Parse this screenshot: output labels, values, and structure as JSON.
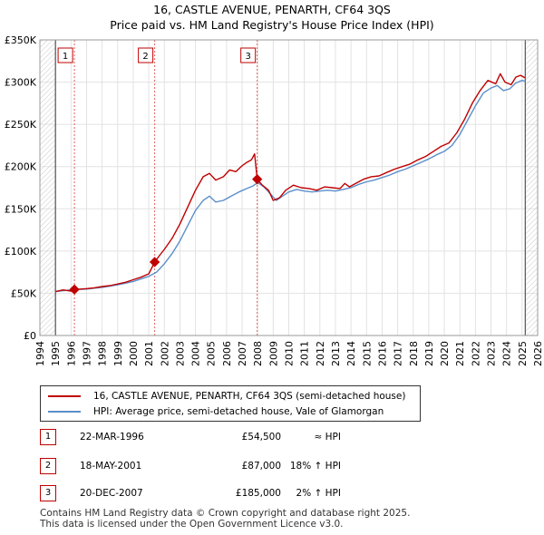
{
  "chart_data": {
    "type": "line",
    "title": "16, CASTLE AVENUE, PENARTH, CF64 3QS",
    "subtitle": "Price paid vs. HM Land Registry's House Price Index (HPI)",
    "xlabel": "",
    "ylabel": "",
    "xlim": [
      1994,
      2026
    ],
    "ylim": [
      0,
      350000
    ],
    "y_ticks": [
      {
        "value": 0,
        "label": "£0"
      },
      {
        "value": 50000,
        "label": "£50K"
      },
      {
        "value": 100000,
        "label": "£100K"
      },
      {
        "value": 150000,
        "label": "£150K"
      },
      {
        "value": 200000,
        "label": "£200K"
      },
      {
        "value": 250000,
        "label": "£250K"
      },
      {
        "value": 300000,
        "label": "£300K"
      },
      {
        "value": 350000,
        "label": "£350K"
      }
    ],
    "x_ticks": [
      "1994",
      "1995",
      "1996",
      "1997",
      "1998",
      "1999",
      "2000",
      "2001",
      "2002",
      "2003",
      "2004",
      "2005",
      "2006",
      "2007",
      "2008",
      "2009",
      "2010",
      "2011",
      "2012",
      "2013",
      "2014",
      "2015",
      "2016",
      "2017",
      "2018",
      "2019",
      "2020",
      "2021",
      "2022",
      "2023",
      "2024",
      "2025",
      "2026"
    ],
    "grid": true,
    "data_start": 1995.0,
    "data_end": 2025.2,
    "hatched_ranges": [
      [
        1994,
        1995.0
      ],
      [
        2025.2,
        2026
      ]
    ],
    "series": [
      {
        "name": "16, CASTLE AVENUE, PENARTH, CF64 3QS (semi-detached house)",
        "color": "#c00000",
        "points": [
          [
            1995.0,
            52000
          ],
          [
            1995.5,
            54000
          ],
          [
            1996.0,
            52500
          ],
          [
            1996.22,
            54500
          ],
          [
            1996.6,
            55000
          ],
          [
            1997.0,
            55500
          ],
          [
            1997.5,
            56500
          ],
          [
            1998.0,
            58000
          ],
          [
            1998.5,
            59000
          ],
          [
            1999.0,
            61000
          ],
          [
            1999.5,
            63000
          ],
          [
            2000.0,
            66000
          ],
          [
            2000.5,
            69000
          ],
          [
            2001.0,
            73000
          ],
          [
            2001.38,
            87000
          ],
          [
            2001.7,
            95000
          ],
          [
            2002.0,
            102000
          ],
          [
            2002.5,
            115000
          ],
          [
            2003.0,
            132000
          ],
          [
            2003.5,
            152000
          ],
          [
            2004.0,
            172000
          ],
          [
            2004.5,
            188000
          ],
          [
            2004.9,
            192000
          ],
          [
            2005.3,
            184000
          ],
          [
            2005.8,
            188000
          ],
          [
            2006.2,
            196000
          ],
          [
            2006.6,
            194000
          ],
          [
            2007.0,
            201000
          ],
          [
            2007.3,
            205000
          ],
          [
            2007.6,
            208000
          ],
          [
            2007.8,
            215000
          ],
          [
            2007.97,
            185000
          ],
          [
            2008.3,
            178000
          ],
          [
            2008.7,
            172000
          ],
          [
            2009.0,
            160000
          ],
          [
            2009.4,
            163000
          ],
          [
            2009.8,
            172000
          ],
          [
            2010.3,
            178000
          ],
          [
            2010.8,
            175000
          ],
          [
            2011.3,
            174000
          ],
          [
            2011.8,
            172000
          ],
          [
            2012.3,
            176000
          ],
          [
            2012.8,
            175000
          ],
          [
            2013.3,
            174000
          ],
          [
            2013.6,
            180000
          ],
          [
            2013.9,
            176000
          ],
          [
            2014.3,
            180000
          ],
          [
            2014.8,
            185000
          ],
          [
            2015.3,
            188000
          ],
          [
            2015.8,
            189000
          ],
          [
            2016.3,
            193000
          ],
          [
            2016.8,
            197000
          ],
          [
            2017.3,
            200000
          ],
          [
            2017.8,
            203000
          ],
          [
            2018.3,
            208000
          ],
          [
            2018.8,
            212000
          ],
          [
            2019.3,
            218000
          ],
          [
            2019.8,
            224000
          ],
          [
            2020.3,
            228000
          ],
          [
            2020.8,
            240000
          ],
          [
            2021.3,
            256000
          ],
          [
            2021.8,
            275000
          ],
          [
            2022.3,
            290000
          ],
          [
            2022.8,
            302000
          ],
          [
            2023.3,
            298000
          ],
          [
            2023.6,
            310000
          ],
          [
            2023.9,
            300000
          ],
          [
            2024.3,
            297000
          ],
          [
            2024.6,
            306000
          ],
          [
            2024.9,
            308000
          ],
          [
            2025.2,
            305000
          ]
        ]
      },
      {
        "name": "HPI: Average price, semi-detached house, Vale of Glamorgan",
        "color": "#5b8fc9",
        "points": [
          [
            1995.0,
            52000
          ],
          [
            1995.5,
            53000
          ],
          [
            1996.0,
            54000
          ],
          [
            1996.5,
            54500
          ],
          [
            1997.0,
            55000
          ],
          [
            1997.5,
            56000
          ],
          [
            1998.0,
            57000
          ],
          [
            1998.5,
            58500
          ],
          [
            1999.0,
            60000
          ],
          [
            1999.5,
            62000
          ],
          [
            2000.0,
            64000
          ],
          [
            2000.5,
            67000
          ],
          [
            2001.0,
            70000
          ],
          [
            2001.5,
            75000
          ],
          [
            2002.0,
            85000
          ],
          [
            2002.5,
            97000
          ],
          [
            2003.0,
            112000
          ],
          [
            2003.5,
            130000
          ],
          [
            2004.0,
            148000
          ],
          [
            2004.5,
            160000
          ],
          [
            2004.9,
            165000
          ],
          [
            2005.3,
            158000
          ],
          [
            2005.8,
            160000
          ],
          [
            2006.3,
            165000
          ],
          [
            2006.8,
            170000
          ],
          [
            2007.3,
            174000
          ],
          [
            2007.7,
            177000
          ],
          [
            2008.0,
            181000
          ],
          [
            2008.4,
            176000
          ],
          [
            2008.8,
            168000
          ],
          [
            2009.2,
            160000
          ],
          [
            2009.6,
            165000
          ],
          [
            2010.0,
            170000
          ],
          [
            2010.5,
            173000
          ],
          [
            2011.0,
            171000
          ],
          [
            2011.5,
            170000
          ],
          [
            2012.0,
            171000
          ],
          [
            2012.5,
            172000
          ],
          [
            2013.0,
            171000
          ],
          [
            2013.5,
            173000
          ],
          [
            2014.0,
            175000
          ],
          [
            2014.5,
            179000
          ],
          [
            2015.0,
            182000
          ],
          [
            2015.5,
            184000
          ],
          [
            2016.0,
            187000
          ],
          [
            2016.5,
            190000
          ],
          [
            2017.0,
            194000
          ],
          [
            2017.5,
            197000
          ],
          [
            2018.0,
            201000
          ],
          [
            2018.5,
            205000
          ],
          [
            2019.0,
            209000
          ],
          [
            2019.5,
            214000
          ],
          [
            2020.0,
            218000
          ],
          [
            2020.5,
            225000
          ],
          [
            2021.0,
            238000
          ],
          [
            2021.5,
            255000
          ],
          [
            2022.0,
            272000
          ],
          [
            2022.5,
            287000
          ],
          [
            2023.0,
            293000
          ],
          [
            2023.4,
            296000
          ],
          [
            2023.8,
            290000
          ],
          [
            2024.2,
            292000
          ],
          [
            2024.6,
            299000
          ],
          [
            2025.0,
            302000
          ],
          [
            2025.2,
            301000
          ]
        ]
      }
    ],
    "markers": [
      {
        "label": "1",
        "x": 1996.22,
        "y": 54500
      },
      {
        "label": "2",
        "x": 2001.38,
        "y": 87000
      },
      {
        "label": "3",
        "x": 2007.97,
        "y": 185000
      }
    ]
  },
  "legend": {
    "items": [
      {
        "label": "16, CASTLE AVENUE, PENARTH, CF64 3QS (semi-detached house)",
        "color": "#c00000"
      },
      {
        "label": "HPI: Average price, semi-detached house, Vale of Glamorgan",
        "color": "#5b8fc9"
      }
    ]
  },
  "sales": [
    {
      "num": "1",
      "date": "22-MAR-1996",
      "price": "£54,500",
      "hpi": "≈ HPI"
    },
    {
      "num": "2",
      "date": "18-MAY-2001",
      "price": "£87,000",
      "hpi": "18% ↑ HPI"
    },
    {
      "num": "3",
      "date": "20-DEC-2007",
      "price": "£185,000",
      "hpi": "2% ↑ HPI"
    }
  ],
  "footer": {
    "line1": "Contains HM Land Registry data © Crown copyright and database right 2025.",
    "line2": "This data is licensed under the Open Government Licence v3.0."
  }
}
